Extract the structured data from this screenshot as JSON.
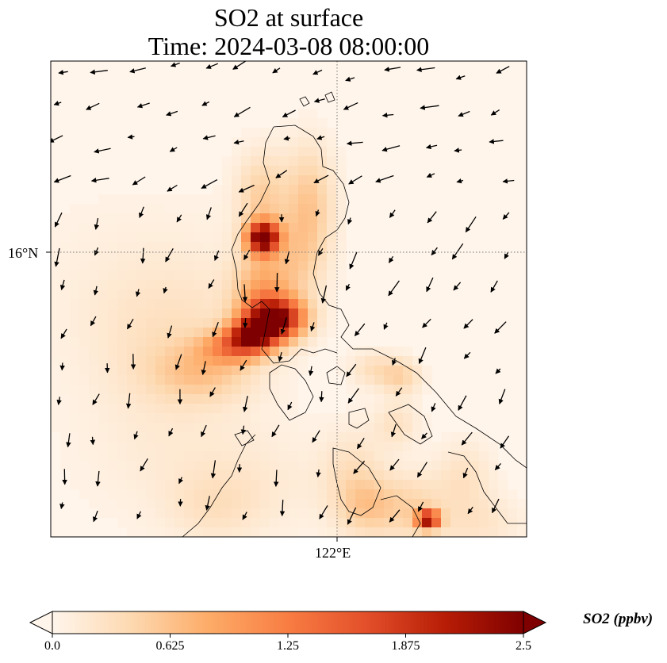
{
  "title": {
    "line1": "SO2 at surface",
    "line2": "Time: 2024-03-08 08:00:00"
  },
  "map": {
    "lat_label": "16°N",
    "lon_label": "122°E",
    "gridline_style": "dotted"
  },
  "colorbar": {
    "label": "SO2 (ppbv)",
    "ticks": [
      "0.0",
      "0.625",
      "1.25",
      "1.875",
      "2.5"
    ],
    "min": 0.0,
    "max": 2.5,
    "extend": "both",
    "colormap": [
      "#fff5eb",
      "#fdd9b1",
      "#fdab67",
      "#f87d43",
      "#e34f2a",
      "#b71d06",
      "#7f0000"
    ]
  }
}
